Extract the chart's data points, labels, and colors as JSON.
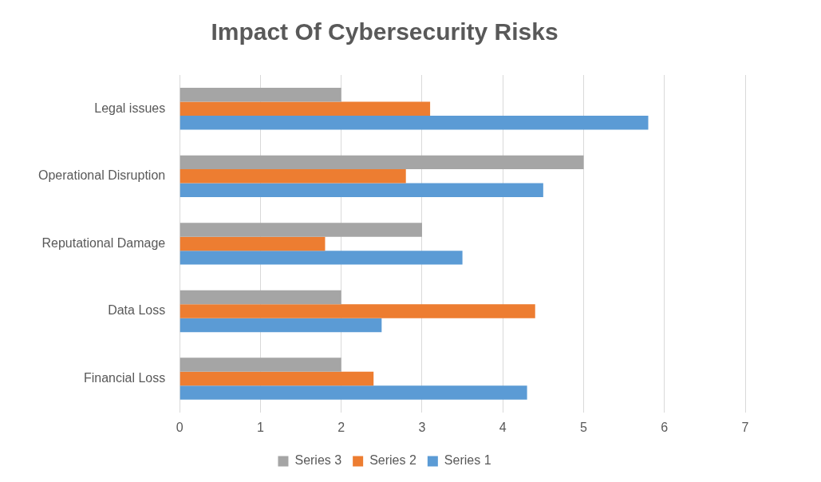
{
  "chart_data": {
    "type": "bar",
    "orientation": "horizontal",
    "title": "Impact Of Cybersecurity Risks",
    "categories": [
      "Legal issues",
      "Operational Disruption",
      "Reputational Damage",
      "Data Loss",
      "Financial Loss"
    ],
    "series": [
      {
        "name": "Series 3",
        "color": "#a5a5a5",
        "values": [
          2,
          5,
          3,
          2,
          2
        ]
      },
      {
        "name": "Series 2",
        "color": "#ed7d31",
        "values": [
          3.1,
          2.8,
          1.8,
          4.4,
          2.4
        ]
      },
      {
        "name": "Series 1",
        "color": "#5b9bd5",
        "values": [
          5.8,
          4.5,
          3.5,
          2.5,
          4.3
        ]
      }
    ],
    "xlim": [
      0,
      7
    ],
    "xticks": [
      0,
      1,
      2,
      3,
      4,
      5,
      6,
      7
    ],
    "grid": "x",
    "legend": "bottom"
  }
}
